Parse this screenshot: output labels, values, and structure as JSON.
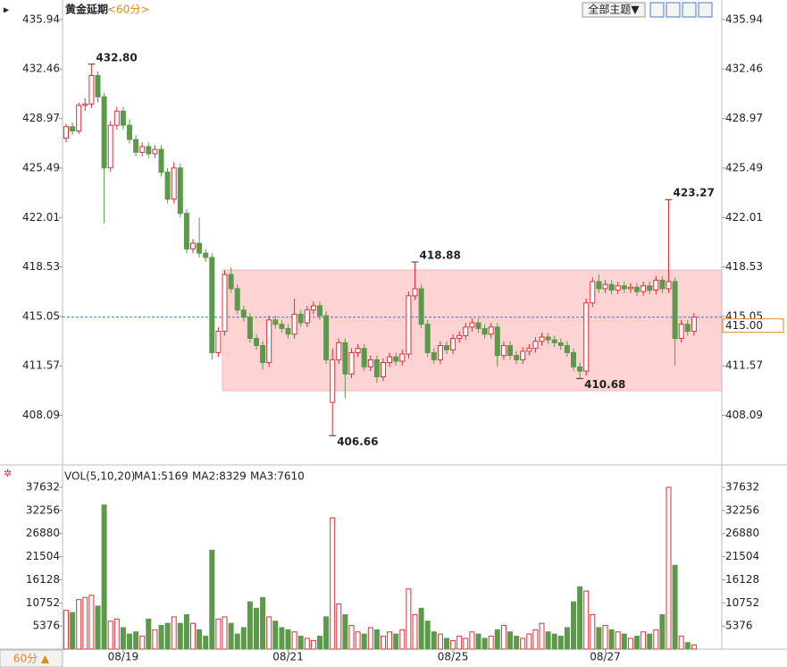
{
  "header": {
    "instrument": "黄金延期",
    "period": "<60分>",
    "theme_button": "全部主题▼",
    "period_button": "60分 ▲"
  },
  "chart_data": [
    {
      "type": "candlestick",
      "up_color": "#d9303a",
      "down_color": "#5a9a4a",
      "ylim": [
        404.6,
        437.0
      ],
      "yticks": [
        435.94,
        432.46,
        428.97,
        425.49,
        422.01,
        418.53,
        415.05,
        411.57,
        408.09
      ],
      "last_price": {
        "value": 415,
        "label": "415.00"
      },
      "categories": [
        null,
        null,
        null,
        null,
        null,
        null,
        null,
        null,
        null,
        "08/19",
        null,
        null,
        null,
        null,
        null,
        null,
        null,
        null,
        null,
        null,
        null,
        null,
        null,
        null,
        null,
        null,
        null,
        null,
        null,
        null,
        null,
        null,
        null,
        null,
        null,
        "08/21",
        null,
        null,
        null,
        null,
        null,
        null,
        null,
        null,
        null,
        null,
        null,
        null,
        null,
        null,
        null,
        null,
        null,
        null,
        null,
        null,
        null,
        null,
        null,
        null,
        null,
        "08/25",
        null,
        null,
        null,
        null,
        null,
        null,
        null,
        null,
        null,
        null,
        null,
        null,
        null,
        null,
        null,
        null,
        null,
        null,
        null,
        null,
        null,
        null,
        null,
        "08/27",
        null,
        null,
        null,
        null,
        null,
        null,
        null,
        null,
        null,
        null,
        null,
        null,
        null
      ],
      "candles": [
        [
          427.6,
          428.6,
          427.3,
          428.4
        ],
        [
          428.4,
          428.7,
          427.8,
          428.1
        ],
        [
          428.1,
          430.1,
          427.9,
          429.9
        ],
        [
          429.9,
          430.4,
          429.5,
          430.0
        ],
        [
          430.0,
          432.8,
          429.7,
          432.0
        ],
        [
          432.0,
          432.3,
          430.1,
          430.5
        ],
        [
          430.5,
          430.8,
          421.6,
          425.5
        ],
        [
          425.5,
          428.8,
          425.2,
          428.5
        ],
        [
          428.5,
          429.8,
          428.2,
          429.5
        ],
        [
          429.5,
          429.8,
          428.2,
          428.5
        ],
        [
          428.5,
          428.9,
          427.2,
          427.5
        ],
        [
          427.5,
          427.8,
          426.3,
          426.6
        ],
        [
          426.6,
          427.3,
          426.3,
          427.0
        ],
        [
          427.0,
          427.3,
          426.2,
          426.5
        ],
        [
          426.5,
          427.1,
          426.2,
          426.8
        ],
        [
          426.8,
          427.1,
          424.9,
          425.2
        ],
        [
          425.2,
          425.5,
          423.0,
          423.3
        ],
        [
          423.3,
          425.9,
          423.0,
          425.5
        ],
        [
          425.5,
          425.8,
          422.0,
          422.3
        ],
        [
          422.3,
          422.6,
          419.5,
          419.8
        ],
        [
          419.8,
          420.5,
          419.5,
          420.2
        ],
        [
          420.2,
          422.0,
          419.2,
          419.5
        ],
        [
          419.5,
          419.8,
          418.9,
          419.2
        ],
        [
          419.2,
          419.5,
          412.0,
          412.5
        ],
        [
          412.5,
          414.3,
          412.2,
          414.0
        ],
        [
          414.0,
          418.3,
          413.7,
          418.0
        ],
        [
          418.0,
          418.5,
          416.7,
          417.0
        ],
        [
          417.0,
          417.3,
          415.2,
          415.5
        ],
        [
          415.5,
          415.8,
          414.7,
          415.0
        ],
        [
          415.0,
          415.3,
          413.2,
          413.5
        ],
        [
          413.5,
          413.8,
          412.7,
          413.0
        ],
        [
          413.0,
          413.3,
          411.3,
          411.8
        ],
        [
          411.8,
          415.1,
          411.5,
          414.8
        ],
        [
          414.8,
          415.1,
          414.2,
          414.5
        ],
        [
          414.5,
          414.8,
          413.9,
          414.2
        ],
        [
          414.2,
          414.5,
          413.5,
          413.8
        ],
        [
          413.8,
          416.3,
          413.5,
          415.2
        ],
        [
          415.2,
          415.5,
          414.3,
          414.6
        ],
        [
          414.6,
          415.8,
          414.3,
          415.5
        ],
        [
          415.5,
          416.1,
          415.2,
          415.8
        ],
        [
          415.8,
          416.1,
          414.8,
          415.1
        ],
        [
          415.1,
          415.4,
          411.7,
          412.0
        ],
        [
          409.0,
          412.8,
          406.66,
          412.0
        ],
        [
          412.0,
          413.5,
          411.7,
          413.2
        ],
        [
          413.2,
          413.5,
          409.3,
          411.0
        ],
        [
          411.0,
          412.8,
          410.7,
          412.5
        ],
        [
          412.5,
          413.1,
          412.2,
          412.8
        ],
        [
          412.8,
          413.1,
          411.2,
          411.5
        ],
        [
          411.5,
          412.3,
          411.2,
          412.0
        ],
        [
          412.0,
          412.3,
          410.4,
          410.8
        ],
        [
          410.8,
          412.1,
          410.5,
          411.8
        ],
        [
          411.8,
          412.5,
          411.5,
          412.2
        ],
        [
          412.2,
          412.5,
          411.6,
          411.9
        ],
        [
          411.9,
          412.7,
          411.6,
          412.4
        ],
        [
          412.4,
          416.8,
          412.1,
          416.5
        ],
        [
          416.5,
          418.88,
          416.2,
          417.0
        ],
        [
          417.0,
          417.3,
          414.2,
          414.5
        ],
        [
          414.5,
          414.8,
          412.2,
          412.5
        ],
        [
          412.5,
          412.8,
          411.7,
          412.0
        ],
        [
          412.0,
          413.3,
          411.7,
          413.0
        ],
        [
          413.0,
          413.3,
          412.4,
          412.7
        ],
        [
          412.7,
          413.8,
          412.4,
          413.5
        ],
        [
          413.5,
          414.0,
          413.2,
          413.7
        ],
        [
          413.7,
          414.6,
          413.4,
          414.3
        ],
        [
          414.3,
          414.9,
          414.0,
          414.6
        ],
        [
          414.6,
          414.9,
          413.9,
          414.2
        ],
        [
          414.2,
          414.5,
          413.5,
          413.8
        ],
        [
          413.8,
          414.6,
          413.5,
          414.3
        ],
        [
          414.3,
          414.6,
          411.5,
          412.3
        ],
        [
          412.3,
          413.3,
          412.0,
          413.0
        ],
        [
          413.0,
          413.3,
          412.0,
          412.3
        ],
        [
          412.3,
          412.6,
          411.7,
          412.0
        ],
        [
          412.0,
          412.9,
          411.7,
          412.6
        ],
        [
          412.6,
          413.1,
          412.3,
          412.8
        ],
        [
          412.8,
          413.6,
          412.5,
          413.3
        ],
        [
          413.3,
          413.9,
          413.0,
          413.6
        ],
        [
          413.6,
          413.9,
          413.1,
          413.4
        ],
        [
          413.4,
          413.7,
          412.9,
          413.2
        ],
        [
          413.2,
          413.5,
          412.7,
          413.0
        ],
        [
          413.0,
          413.3,
          412.2,
          412.5
        ],
        [
          412.5,
          412.8,
          411.2,
          411.5
        ],
        [
          411.5,
          411.8,
          410.68,
          411.2
        ],
        [
          411.2,
          416.3,
          410.9,
          416.0
        ],
        [
          416.0,
          417.8,
          415.7,
          417.5
        ],
        [
          417.5,
          418.0,
          416.7,
          417.0
        ],
        [
          417.0,
          417.6,
          416.7,
          417.3
        ],
        [
          417.3,
          417.6,
          416.6,
          416.9
        ],
        [
          416.9,
          417.5,
          416.6,
          417.2
        ],
        [
          417.2,
          417.5,
          416.7,
          417.0
        ],
        [
          417.0,
          417.4,
          416.7,
          417.1
        ],
        [
          417.1,
          417.4,
          416.5,
          416.8
        ],
        [
          416.8,
          417.5,
          416.5,
          417.2
        ],
        [
          417.2,
          417.5,
          416.6,
          416.9
        ],
        [
          416.9,
          417.9,
          416.6,
          417.6
        ],
        [
          417.6,
          417.9,
          416.7,
          417.0
        ],
        [
          417.0,
          423.27,
          416.7,
          417.5
        ],
        [
          417.5,
          417.8,
          411.6,
          413.5
        ],
        [
          413.5,
          414.8,
          413.2,
          414.5
        ],
        [
          414.5,
          414.8,
          413.7,
          414.0
        ],
        [
          414.0,
          415.3,
          413.7,
          415.0
        ]
      ],
      "annotations": [
        {
          "value": 432.8,
          "label": "432.80"
        },
        {
          "value": 406.66,
          "label": "406.66"
        },
        {
          "value": 418.88,
          "label": "418.88"
        },
        {
          "value": 410.68,
          "label": "410.68"
        },
        {
          "value": 423.27,
          "label": "423.27"
        }
      ]
    },
    {
      "type": "volume",
      "title": "VOL(5,10,20)",
      "ylim": [
        0,
        37632
      ],
      "yticks": [
        37632,
        32256,
        26880,
        21504,
        16128,
        10752,
        5376
      ],
      "legend": [
        {
          "name": "MA1:5169",
          "color": "#1a1a8c"
        },
        {
          "name": "MA2:8329",
          "color": "#d020d0"
        },
        {
          "name": "MA3:7610",
          "color": "#e08a1e"
        }
      ],
      "values": [
        9000,
        8500,
        11500,
        12000,
        12500,
        10000,
        33500,
        6500,
        7000,
        5000,
        3500,
        4000,
        3000,
        7000,
        4500,
        5500,
        6000,
        7500,
        6000,
        8000,
        6000,
        4500,
        3000,
        23000,
        7000,
        7500,
        6000,
        3500,
        5000,
        11000,
        9500,
        12000,
        7500,
        6500,
        5000,
        4500,
        4000,
        3000,
        2500,
        2000,
        3000,
        7500,
        30500,
        10500,
        8000,
        5500,
        4000,
        3500,
        5000,
        4500,
        3000,
        4000,
        3500,
        4500,
        14000,
        8000,
        9500,
        6500,
        4000,
        3500,
        2500,
        2000,
        3000,
        2500,
        4000,
        3500,
        2500,
        3000,
        4500,
        5500,
        4000,
        3000,
        2500,
        3500,
        4500,
        6000,
        4000,
        3500,
        3000,
        5000,
        11000,
        14500,
        13500,
        8000,
        5000,
        5500,
        4500,
        4000,
        3500,
        2500,
        3000,
        4000,
        3500,
        4500,
        8000,
        37632,
        19500,
        3000,
        1500,
        1000
      ]
    }
  ]
}
